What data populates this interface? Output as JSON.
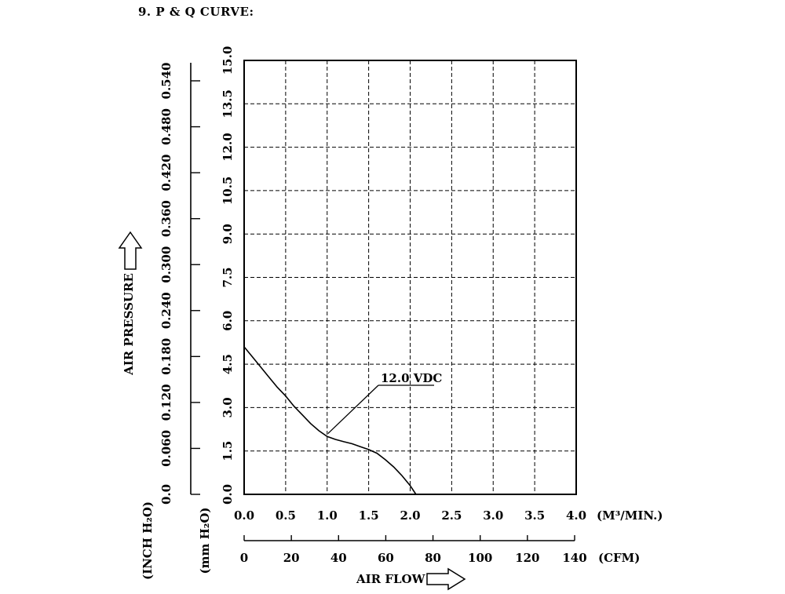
{
  "page_title": "9. P & Q CURVE:",
  "chart_data": {
    "type": "line",
    "title": "",
    "x_primary": {
      "ticks": [
        "0.0",
        "0.5",
        "1.0",
        "1.5",
        "2.0",
        "2.5",
        "3.0",
        "3.5",
        "4.0"
      ],
      "range": [
        0,
        4.0
      ],
      "unit": "(M³/MIN.)"
    },
    "x_secondary": {
      "ticks": [
        "0",
        "20",
        "40",
        "60",
        "80",
        "100",
        "120",
        "140"
      ],
      "range": [
        0,
        140
      ],
      "unit": "(CFM)"
    },
    "xlabel": "AIR FLOW",
    "y_primary": {
      "ticks": [
        "0.0",
        "1.5",
        "3.0",
        "4.5",
        "6.0",
        "7.5",
        "9.0",
        "10.5",
        "12.0",
        "13.5",
        "15.0"
      ],
      "range": [
        0,
        15.0
      ],
      "unit": "(mm H₂O)"
    },
    "y_secondary": {
      "ticks": [
        "0.0",
        "0.060",
        "0.120",
        "0.180",
        "0.240",
        "0.300",
        "0.360",
        "0.420",
        "0.480",
        "0.540"
      ],
      "range": [
        0,
        0.54
      ],
      "unit": "(INCH H₂O)"
    },
    "ylabel": "AIR PRESSURE",
    "grid": true,
    "series": [
      {
        "name": "12.0 VDC",
        "x": [
          0.0,
          0.1,
          0.2,
          0.3,
          0.4,
          0.5,
          0.6,
          0.7,
          0.8,
          0.9,
          1.0,
          1.1,
          1.2,
          1.3,
          1.4,
          1.5,
          1.6,
          1.7,
          1.8,
          1.9,
          2.0,
          2.07
        ],
        "y": [
          5.1,
          4.75,
          4.4,
          4.05,
          3.7,
          3.4,
          3.05,
          2.75,
          2.45,
          2.2,
          2.0,
          1.9,
          1.82,
          1.75,
          1.65,
          1.55,
          1.42,
          1.2,
          0.95,
          0.65,
          0.3,
          0.0
        ]
      }
    ],
    "annotation": {
      "text": "12.0 VDC",
      "points_to": [
        1.0,
        2.1
      ]
    }
  }
}
